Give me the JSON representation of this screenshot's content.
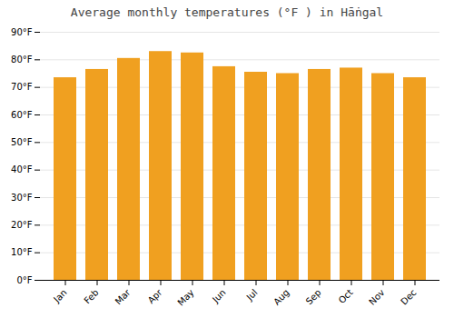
{
  "chart_data": {
    "type": "bar",
    "title": "Average monthly temperatures (°F ) in Hāṅgal",
    "categories": [
      "Jan",
      "Feb",
      "Mar",
      "Apr",
      "May",
      "Jun",
      "Jul",
      "Aug",
      "Sep",
      "Oct",
      "Nov",
      "Dec"
    ],
    "values": [
      73.5,
      76.5,
      80.5,
      83.0,
      82.5,
      77.5,
      75.5,
      75.0,
      76.5,
      77.0,
      75.0,
      73.5
    ],
    "color": "#F0A020",
    "ylim": [
      0,
      90
    ],
    "yticks": [
      {
        "value": 0,
        "label": "0°F"
      },
      {
        "value": 10,
        "label": "10°F"
      },
      {
        "value": 20,
        "label": "20°F"
      },
      {
        "value": 30,
        "label": "30°F"
      },
      {
        "value": 40,
        "label": "40°F"
      },
      {
        "value": 50,
        "label": "50°F"
      },
      {
        "value": 60,
        "label": "60°F"
      },
      {
        "value": 70,
        "label": "70°F"
      },
      {
        "value": 80,
        "label": "80°F"
      },
      {
        "value": 90,
        "label": "90°F"
      }
    ],
    "grid": true
  }
}
